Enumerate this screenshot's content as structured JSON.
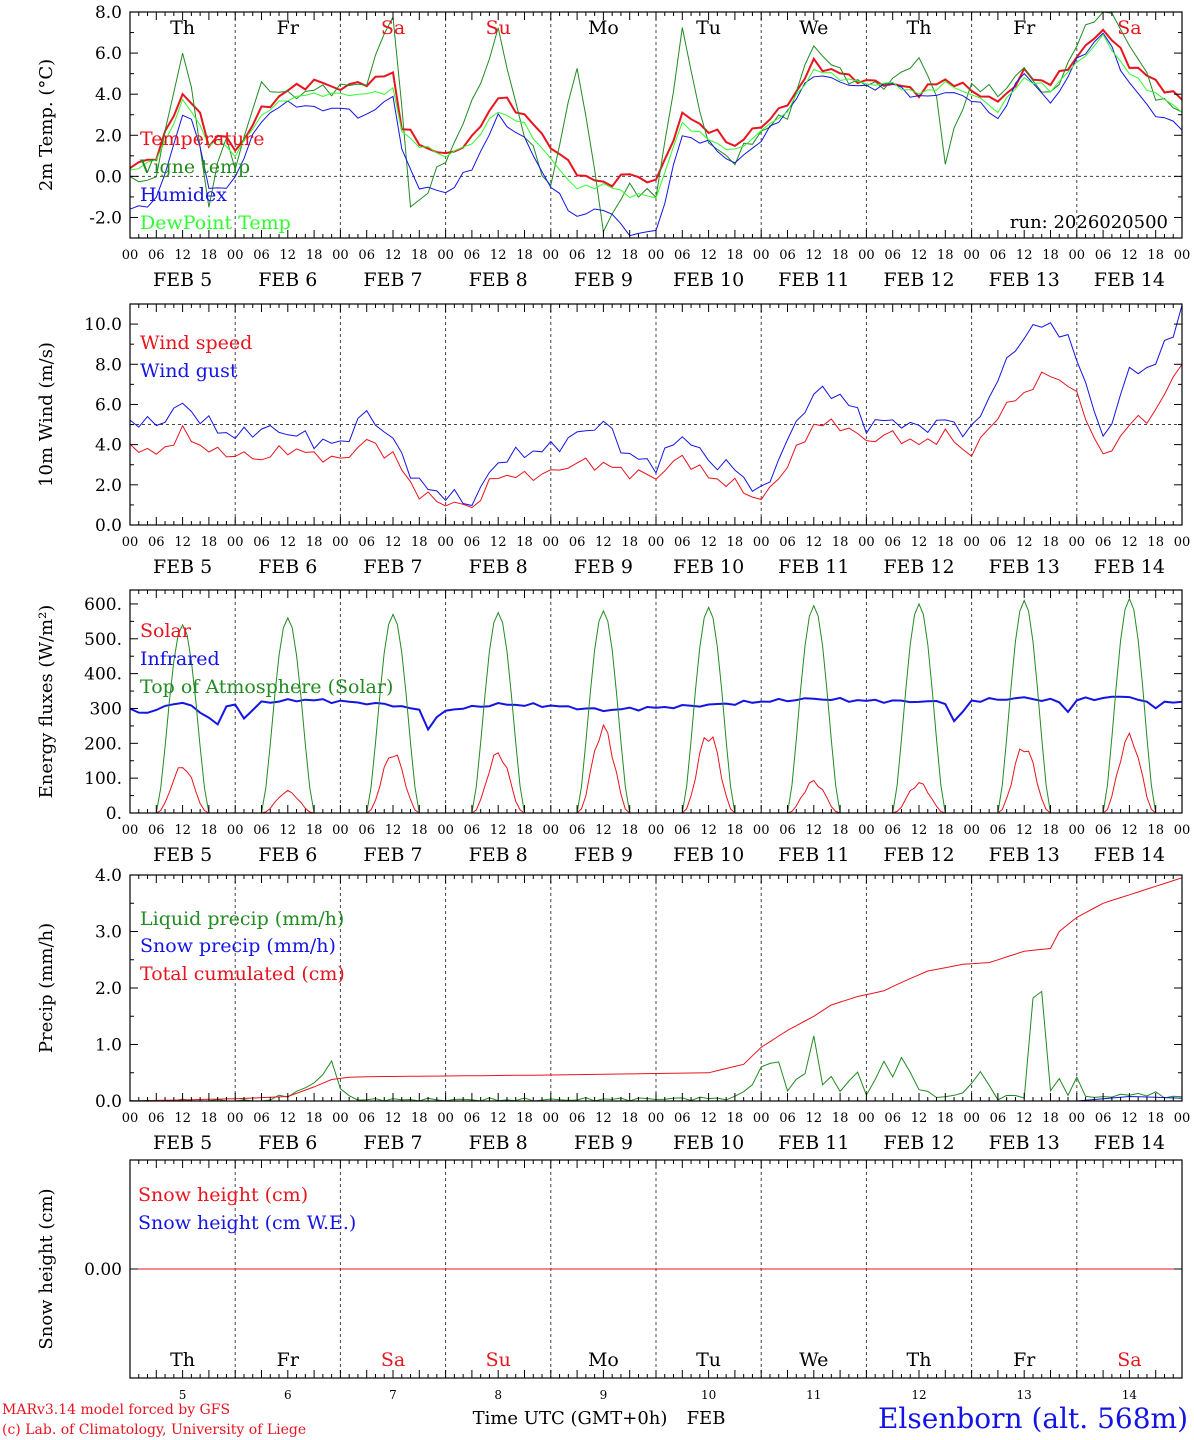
{
  "chart_data": {
    "type": "line",
    "title": "Elsenborn (alt. 568m)",
    "run": "run: 2026020500",
    "time_axis": {
      "hour_labels": [
        "00",
        "06",
        "12",
        "18"
      ],
      "last_hour_label": "00",
      "dates": [
        "FEB 5",
        "FEB 6",
        "FEB 7",
        "FEB 8",
        "FEB 9",
        "FEB 10",
        "FEB 11",
        "FEB 12",
        "FEB 13",
        "FEB 14"
      ],
      "weekdays": [
        "Th",
        "Fr",
        "Sa",
        "Su",
        "Mo",
        "Tu",
        "We",
        "Th",
        "Fr",
        "Sa"
      ],
      "weekday_colors": [
        "#000000",
        "#000000",
        "#e8141e",
        "#e8141e",
        "#000000",
        "#000000",
        "#000000",
        "#000000",
        "#000000",
        "#e8141e"
      ],
      "day_numbers": [
        "5",
        "6",
        "7",
        "8",
        "9",
        "10",
        "11",
        "12",
        "13",
        "14"
      ],
      "xlabel": "Time UTC (GMT+0h)",
      "month": "FEB"
    },
    "panels": [
      {
        "ylabel": "2m Temp. (°C)",
        "ylim": [
          -3,
          8
        ],
        "yticks": [
          "-2.0",
          "0.0",
          "2.0",
          "4.0",
          "6.0",
          "8.0"
        ],
        "ytick_values": [
          -2,
          0,
          2,
          4,
          6,
          8
        ],
        "ref_line": 0,
        "series": [
          {
            "name": "Temperature",
            "color": "#e8141e",
            "width": 2,
            "keys_h": [
              0,
              6,
              12,
              15,
              18,
              21,
              24,
              30,
              36,
              42,
              48,
              54,
              60,
              62,
              66,
              72,
              78,
              84,
              90,
              96,
              102,
              108,
              114,
              120,
              126,
              132,
              138,
              144,
              150,
              156,
              162,
              168,
              174,
              180,
              186,
              192,
              198,
              204,
              210,
              216,
              222,
              228,
              234,
              240
            ],
            "values": [
              0.4,
              1.0,
              4.0,
              3.5,
              1.6,
              2.2,
              1.2,
              3.2,
              4.2,
              4.6,
              4.3,
              4.6,
              5.0,
              2.5,
              1.6,
              1.0,
              1.8,
              3.9,
              3.0,
              1.5,
              0.2,
              -0.4,
              0.1,
              -0.3,
              3.0,
              2.3,
              1.5,
              2.5,
              3.5,
              5.5,
              5.0,
              4.6,
              4.5,
              4.1,
              4.7,
              4.2,
              3.6,
              5.0,
              4.5,
              5.8,
              7.2,
              5.5,
              4.6,
              3.7
            ]
          },
          {
            "name": "Vigne temp",
            "color": "#228b22",
            "width": 1,
            "keys_h": [
              0,
              6,
              12,
              15,
              18,
              21,
              24,
              30,
              36,
              42,
              48,
              54,
              60,
              64,
              66,
              72,
              78,
              84,
              90,
              96,
              102,
              108,
              114,
              120,
              126,
              132,
              138,
              144,
              150,
              156,
              162,
              168,
              174,
              180,
              184,
              186,
              192,
              198,
              204,
              210,
              216,
              222,
              228,
              234,
              240
            ],
            "values": [
              -0.3,
              0.0,
              6.2,
              3.0,
              -1.5,
              2.0,
              0.6,
              4.5,
              3.9,
              4.2,
              4.3,
              4.6,
              8.0,
              -1.5,
              -1.2,
              0.8,
              3.5,
              7.0,
              2.0,
              -0.5,
              5.5,
              -2.5,
              -0.5,
              -1.0,
              7.0,
              1.5,
              0.8,
              2.2,
              3.0,
              6.4,
              5.0,
              4.4,
              4.6,
              5.8,
              3.8,
              0.9,
              4.5,
              4.0,
              5.2,
              3.8,
              6.4,
              8.5,
              6.5,
              4.0,
              3.0
            ]
          },
          {
            "name": "Humidex",
            "color": "#1414e6",
            "width": 1,
            "keys_h": [
              0,
              6,
              12,
              15,
              18,
              21,
              24,
              30,
              36,
              42,
              48,
              54,
              60,
              62,
              66,
              72,
              78,
              84,
              90,
              96,
              102,
              108,
              114,
              120,
              126,
              132,
              138,
              144,
              150,
              156,
              162,
              168,
              174,
              180,
              186,
              192,
              198,
              204,
              210,
              216,
              222,
              228,
              234,
              240
            ],
            "values": [
              -1.6,
              -1.2,
              3.0,
              2.5,
              -0.5,
              -0.8,
              0.0,
              2.8,
              3.6,
              3.3,
              3.3,
              2.9,
              4.0,
              1.2,
              -0.5,
              -0.8,
              0.4,
              2.9,
              1.8,
              -0.5,
              -2.0,
              -1.5,
              -2.8,
              -2.7,
              2.0,
              1.6,
              0.6,
              1.8,
              3.2,
              5.0,
              4.6,
              4.3,
              4.5,
              3.8,
              4.1,
              3.8,
              2.8,
              5.1,
              3.5,
              5.6,
              7.0,
              4.5,
              3.0,
              2.4
            ]
          },
          {
            "name": "DewPoint Temp",
            "color": "#2eff2e",
            "width": 1,
            "keys_h": [
              0,
              6,
              12,
              15,
              18,
              21,
              24,
              30,
              36,
              42,
              48,
              54,
              60,
              62,
              66,
              72,
              78,
              84,
              90,
              96,
              102,
              108,
              114,
              120,
              126,
              132,
              138,
              144,
              150,
              156,
              162,
              168,
              174,
              180,
              186,
              192,
              198,
              204,
              210,
              216,
              222,
              228,
              234,
              240
            ],
            "values": [
              0.3,
              0.8,
              3.6,
              3.0,
              1.5,
              1.8,
              1.0,
              3.0,
              3.8,
              4.0,
              4.0,
              4.0,
              4.2,
              2.2,
              1.5,
              1.0,
              1.6,
              3.2,
              2.5,
              0.8,
              -0.6,
              -0.4,
              -0.9,
              -1.0,
              2.6,
              1.8,
              1.2,
              2.2,
              3.2,
              5.2,
              4.8,
              4.5,
              4.5,
              4.0,
              4.5,
              4.0,
              3.2,
              4.8,
              4.2,
              5.5,
              6.8,
              5.0,
              4.0,
              3.2
            ]
          }
        ]
      },
      {
        "ylabel": "10m Wind (m/s)",
        "ylim": [
          0,
          11
        ],
        "yticks": [
          "0.0",
          "2.0",
          "4.0",
          "6.0",
          "8.0",
          "10.0"
        ],
        "ytick_values": [
          0,
          2,
          4,
          6,
          8,
          10
        ],
        "ref_line": 5,
        "series": [
          {
            "name": "Wind speed",
            "color": "#e8141e",
            "width": 1,
            "keys_h": [
              0,
              6,
              12,
              18,
              24,
              30,
              36,
              42,
              48,
              54,
              60,
              66,
              72,
              78,
              84,
              90,
              96,
              102,
              108,
              114,
              120,
              126,
              132,
              138,
              144,
              150,
              156,
              162,
              168,
              174,
              180,
              186,
              192,
              198,
              204,
              210,
              216,
              222,
              228,
              234,
              240
            ],
            "values": [
              4.0,
              3.5,
              4.6,
              3.7,
              3.5,
              3.3,
              3.8,
              3.5,
              3.2,
              4.2,
              3.4,
              1.5,
              1.1,
              0.9,
              2.5,
              2.4,
              2.6,
              3.1,
              3.0,
              2.6,
              2.4,
              3.4,
              2.4,
              2.0,
              1.2,
              3.0,
              5.0,
              5.0,
              4.2,
              4.5,
              4.0,
              4.5,
              3.5,
              5.5,
              6.6,
              7.6,
              6.5,
              3.3,
              5.0,
              5.6,
              8.2
            ]
          },
          {
            "name": "Wind gust",
            "color": "#1414e6",
            "width": 1,
            "keys_h": [
              0,
              6,
              12,
              18,
              24,
              30,
              36,
              42,
              48,
              54,
              60,
              66,
              72,
              78,
              84,
              90,
              96,
              102,
              108,
              114,
              120,
              126,
              132,
              138,
              144,
              150,
              156,
              162,
              168,
              174,
              180,
              186,
              192,
              198,
              204,
              210,
              216,
              222,
              228,
              234,
              240
            ],
            "values": [
              5.2,
              5.0,
              6.0,
              5.0,
              4.4,
              4.8,
              4.6,
              4.2,
              4.0,
              5.6,
              4.2,
              2.0,
              1.5,
              1.1,
              3.2,
              3.6,
              3.8,
              4.5,
              5.1,
              3.4,
              3.0,
              4.5,
              3.2,
              2.8,
              1.5,
              4.2,
              6.6,
              6.5,
              5.0,
              5.2,
              4.8,
              5.2,
              4.6,
              7.3,
              9.5,
              10.1,
              8.5,
              4.2,
              7.6,
              8.0,
              10.7
            ]
          }
        ]
      },
      {
        "ylabel": "Energy fluxes (W/m²)",
        "ylim": [
          0,
          640
        ],
        "yticks": [
          "0.",
          "100.",
          "200.",
          "300",
          "400.",
          "500.",
          "600."
        ],
        "ytick_values": [
          0,
          100,
          200,
          300,
          400,
          500,
          600
        ],
        "series": [
          {
            "name": "Solar",
            "color": "#e8141e",
            "width": 1,
            "peaks": [
              140,
              65,
              180,
              180,
              255,
              240,
              95,
              90,
              200,
              230
            ]
          },
          {
            "name": "Infrared",
            "color": "#1414e6",
            "width": 2,
            "keys_h": [
              0,
              3,
              12,
              21,
              22,
              24,
              25,
              30,
              40,
              48,
              60,
              66,
              68,
              72,
              84,
              96,
              108,
              116,
              120,
              132,
              144,
              156,
              168,
              180,
              186,
              188,
              192,
              204,
              212,
              214,
              216,
              228,
              234,
              236,
              240
            ],
            "values": [
              295,
              285,
              320,
              250,
              300,
              315,
              260,
              318,
              325,
              320,
              310,
              295,
              245,
              295,
              312,
              308,
              295,
              300,
              302,
              310,
              320,
              328,
              322,
              320,
              318,
              260,
              322,
              330,
              320,
              290,
              325,
              335,
              305,
              318,
              316
            ]
          },
          {
            "name": "Top of Atmosphere (Solar)",
            "color": "#228b22",
            "width": 1,
            "peaks": [
              540,
              560,
              570,
              575,
              580,
              590,
              595,
              600,
              610,
              615
            ]
          }
        ]
      },
      {
        "ylabel": "Precip (mm/h)",
        "ylim": [
          0,
          4
        ],
        "yticks": [
          "0.0",
          "1.0",
          "2.0",
          "3.0",
          "4.0"
        ],
        "ytick_values": [
          0,
          1,
          2,
          3,
          4
        ],
        "series": [
          {
            "name": "Liquid precip (mm/h)",
            "color": "#228b22",
            "width": 1,
            "keys_h": [
              0,
              30,
              36,
              42,
              46,
              48,
              52,
              96,
              138,
              142,
              144,
              148,
              150,
              154,
              156,
              158,
              160,
              162,
              166,
              168,
              172,
              174,
              176,
              180,
              184,
              186,
              190,
              194,
              198,
              202,
              204,
              206,
              208,
              210,
              212,
              214,
              216,
              218,
              222,
              226,
              230,
              234,
              236,
              240
            ],
            "values": [
              0,
              0,
              0.1,
              0.3,
              0.7,
              0.2,
              0.02,
              0.02,
              0.05,
              0.3,
              0.6,
              0.7,
              0.2,
              0.5,
              1.15,
              0.3,
              0.4,
              0.2,
              0.5,
              0.1,
              0.7,
              0.4,
              0.8,
              0.2,
              0.1,
              0.05,
              0.15,
              0.5,
              0.05,
              0.1,
              0.05,
              1.85,
              1.9,
              0.2,
              0.4,
              0.1,
              0.4,
              0.1,
              0.05,
              0.12,
              0.1,
              0.15,
              0.05,
              0.1
            ]
          },
          {
            "name": "Snow precip (mm/h)",
            "color": "#1414e6",
            "width": 1,
            "keys_h": [
              0,
              216,
              228,
              240
            ],
            "values": [
              0,
              0,
              0.08,
              0.05
            ]
          },
          {
            "name": "Total cumulated (cm)",
            "color": "#e8141e",
            "width": 1,
            "keys_h": [
              0,
              24,
              36,
              42,
              46,
              50,
              54,
              96,
              132,
              140,
              144,
              150,
              156,
              160,
              166,
              172,
              176,
              182,
              190,
              196,
              204,
              210,
              212,
              216,
              222,
              240
            ],
            "values": [
              0.0,
              0.04,
              0.08,
              0.25,
              0.38,
              0.42,
              0.43,
              0.46,
              0.5,
              0.65,
              0.95,
              1.25,
              1.5,
              1.7,
              1.85,
              1.95,
              2.1,
              2.3,
              2.42,
              2.45,
              2.65,
              2.7,
              3.0,
              3.25,
              3.5,
              3.95
            ]
          }
        ]
      },
      {
        "ylabel": "Snow height (cm)",
        "ylim": [
          -1,
          1
        ],
        "yticks": [
          "0.00"
        ],
        "ytick_values": [
          0
        ],
        "series": [
          {
            "name": "Snow height (cm)",
            "color": "#e8141e",
            "width": 1,
            "keys_h": [
              0,
              240
            ],
            "values": [
              0,
              0
            ]
          },
          {
            "name": "Snow height (cm W.E.)",
            "color": "#1414e6",
            "width": 1,
            "keys_h": [],
            "values": []
          }
        ]
      }
    ],
    "footer": {
      "model": "MARv3.14 model forced by GFS",
      "credit": "(c) Lab. of Climatology, University of Liege"
    }
  }
}
